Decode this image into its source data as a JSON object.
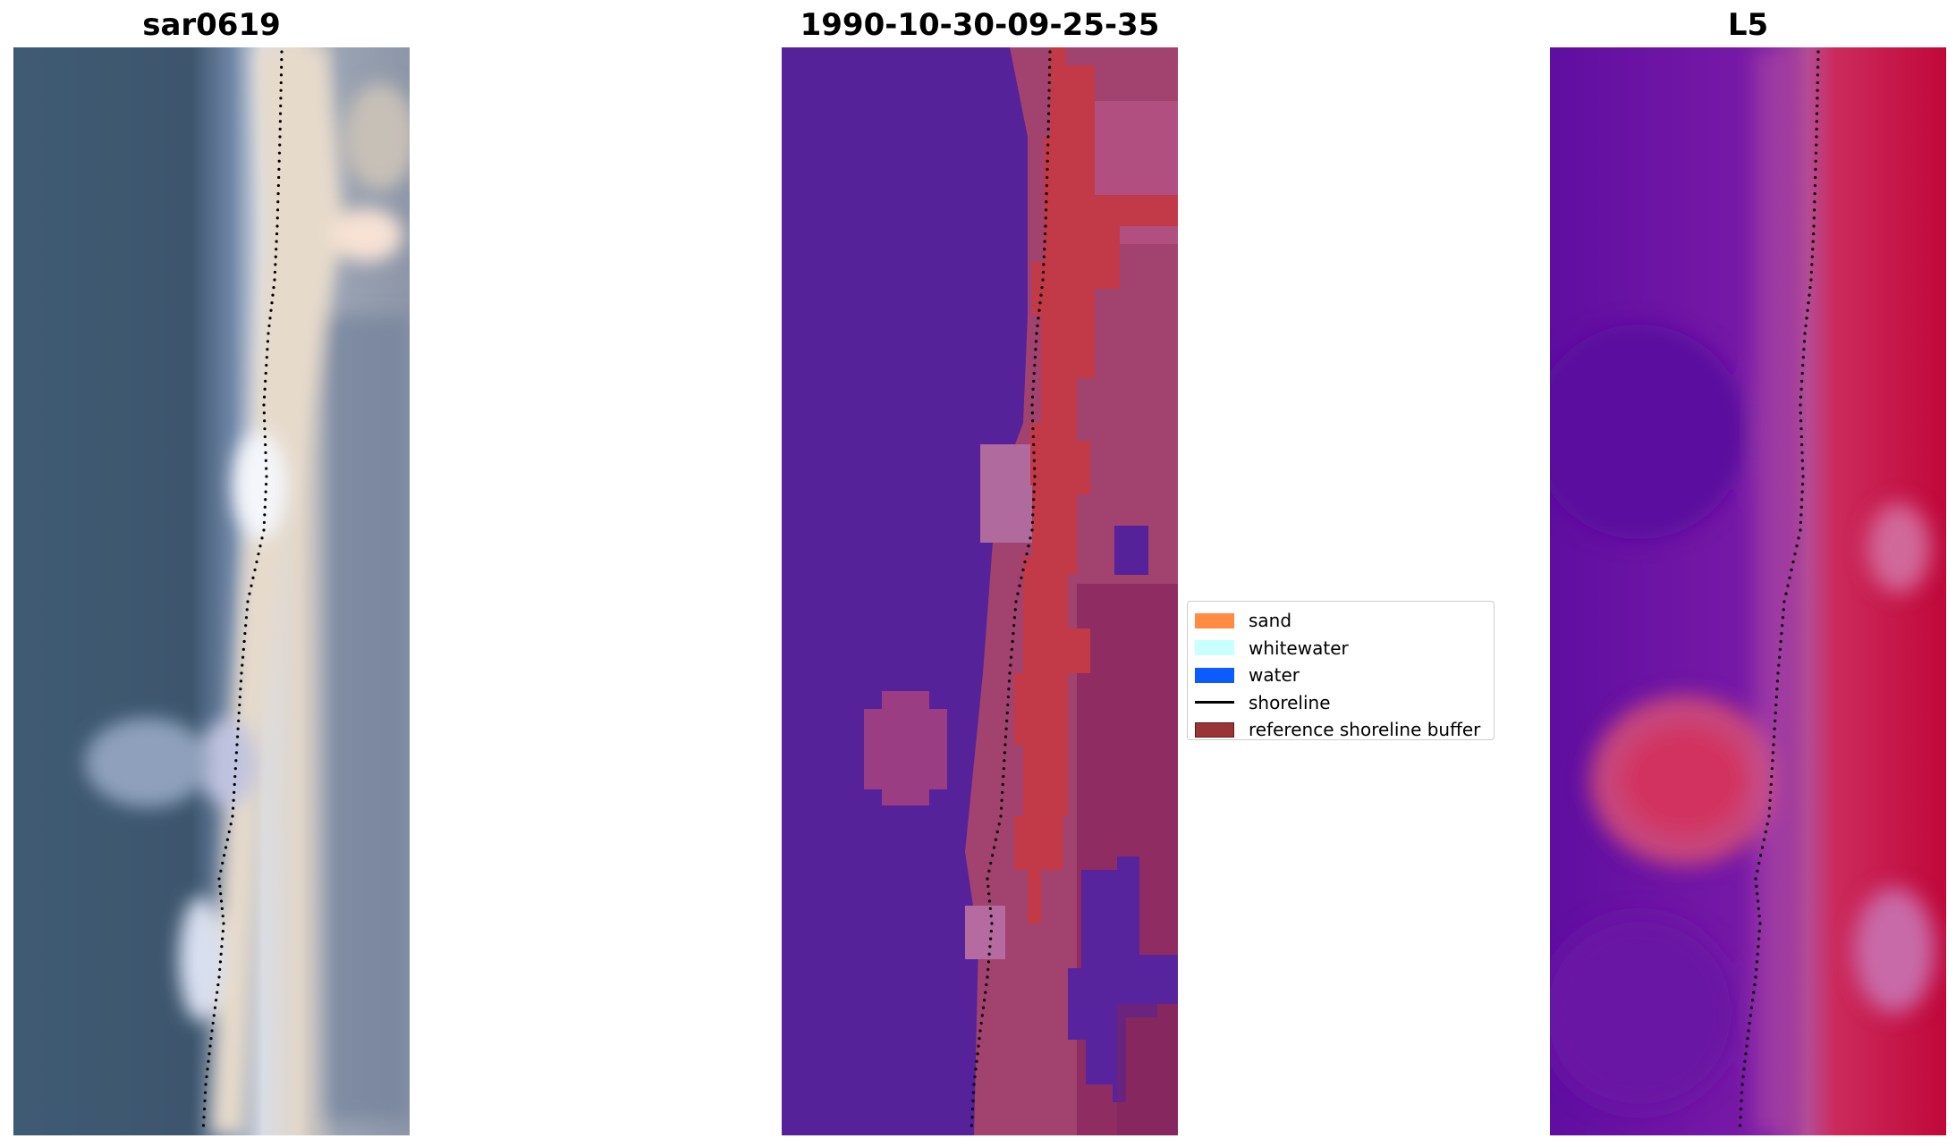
{
  "panels": [
    {
      "title": "sar0619"
    },
    {
      "title": "1990-10-30-09-25-35"
    },
    {
      "title": "L5"
    }
  ],
  "legend": {
    "items": [
      {
        "label": "sand",
        "color": "#ff8c42",
        "kind": "patch"
      },
      {
        "label": "whitewater",
        "color": "#c8ffff",
        "kind": "patch"
      },
      {
        "label": "water",
        "color": "#0a5cff",
        "kind": "patch"
      },
      {
        "label": "shoreline",
        "color": "#000000",
        "kind": "line"
      },
      {
        "label": "reference shoreline buffer",
        "color": "#9b3535",
        "kind": "patch"
      }
    ]
  },
  "colors": {
    "water_rgb": "#3d566e",
    "class_water_overlay": "#55229a",
    "buffer_overlay": "#c03848",
    "index_low": "#5a0aa0",
    "index_high": "#c80032"
  }
}
